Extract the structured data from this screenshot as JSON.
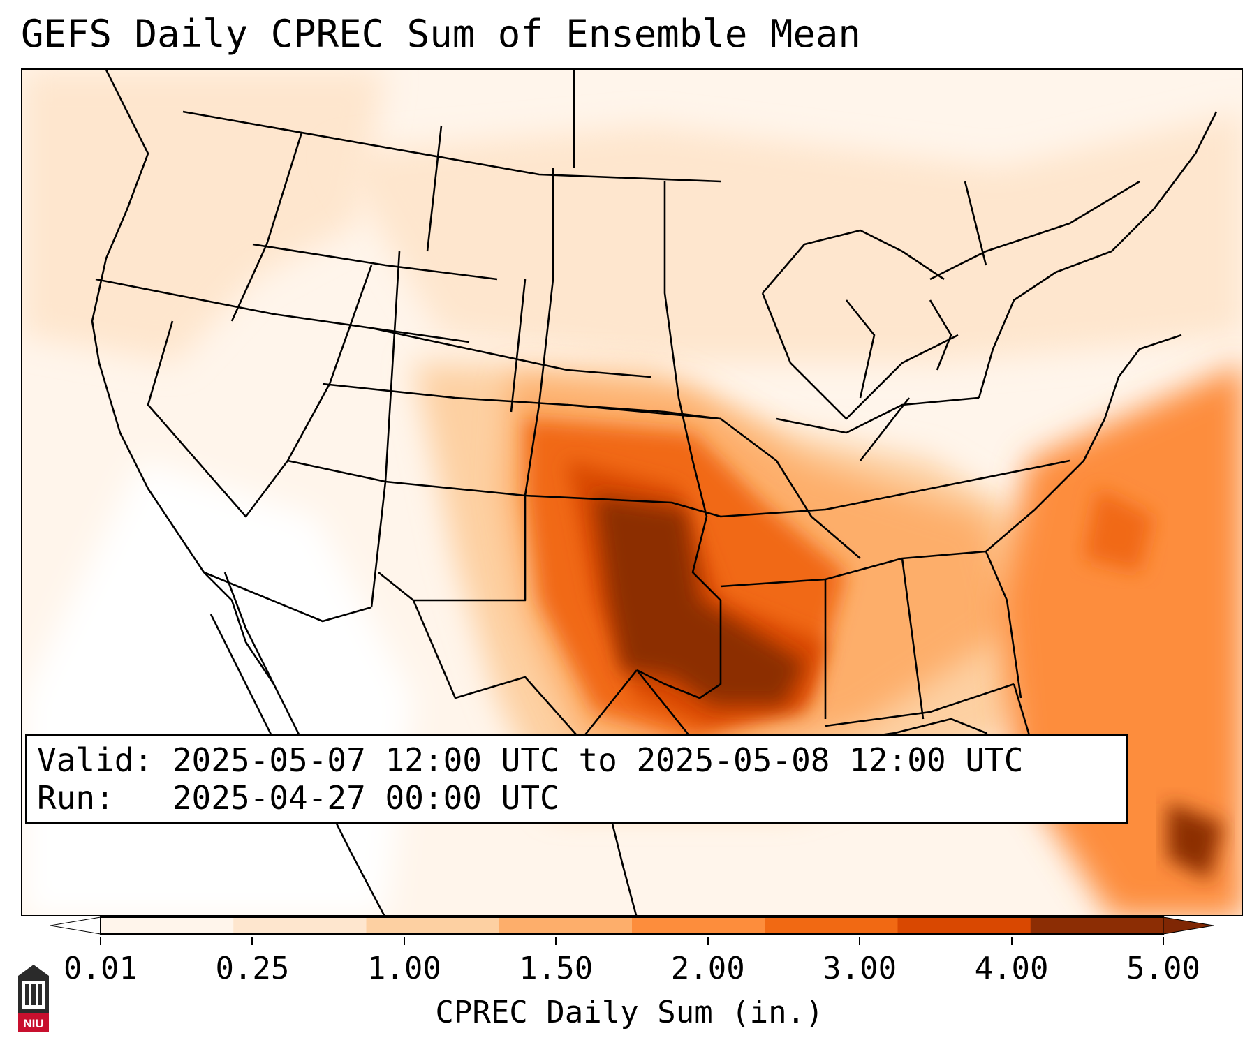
{
  "title": "GEFS Daily CPREC Sum of Ensemble Mean",
  "info": {
    "valid": "Valid: 2025-05-07 12:00 UTC to 2025-05-08 12:00 UTC",
    "run": "Run:   2025-04-27 00:00 UTC"
  },
  "colorbar": {
    "label": "CPREC Daily Sum (in.)",
    "ticks": [
      "0.01",
      "0.25",
      "1.00",
      "1.50",
      "2.00",
      "3.00",
      "4.00",
      "5.00"
    ],
    "colors": [
      "#fff5eb",
      "#fee6ce",
      "#fdd0a2",
      "#fdae6b",
      "#fd8d3c",
      "#f16913",
      "#d94801",
      "#8c2d04"
    ],
    "under_color": "#ffffff",
    "over_color": "#7f2704"
  },
  "logo": {
    "text": "NIU",
    "color": "#c8102e"
  }
}
